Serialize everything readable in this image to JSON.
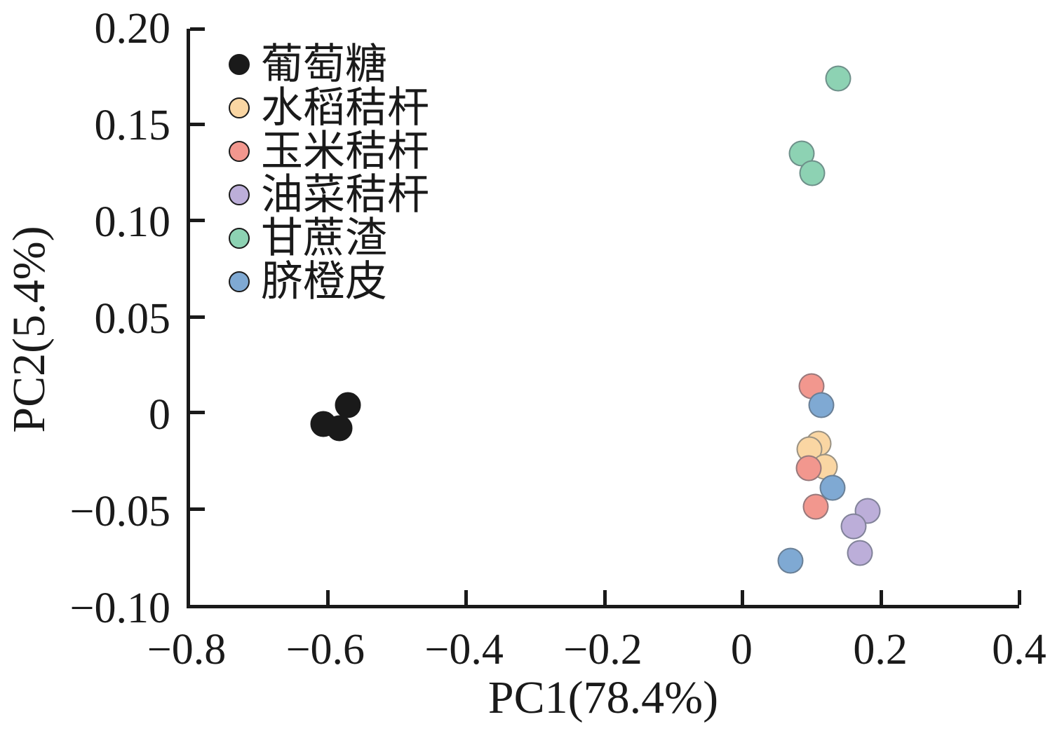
{
  "figure": {
    "background": "#ffffff",
    "text_color": "#1a1a1a"
  },
  "chart_data": {
    "type": "scatter",
    "title": "",
    "xlabel": "PC1(78.4%)",
    "ylabel": "PC2(5.4%)",
    "xlim": [
      -0.8,
      0.4
    ],
    "ylim": [
      -0.1,
      0.2
    ],
    "grid": false,
    "legend_position": "upper-left-inside",
    "x_tick_values": [
      -0.8,
      -0.6,
      -0.4,
      -0.2,
      0,
      0.2,
      0.4
    ],
    "x_tick_labels": [
      "−0.8",
      "−0.6",
      "−0.4",
      "−0.2",
      "0",
      "0.2",
      "0.4"
    ],
    "x_tick_marks": [
      -0.6,
      -0.4,
      -0.2,
      0,
      0.2,
      0.4
    ],
    "y_tick_values": [
      0.2,
      0.15,
      0.1,
      0.05,
      0,
      -0.05,
      -0.1
    ],
    "y_tick_labels": [
      "0.20",
      "0.15",
      "0.10",
      "0.05",
      "0",
      "−0.05",
      "−0.10"
    ],
    "y_tick_marks": [
      0.2,
      0.15,
      0.1,
      0.05,
      0,
      -0.05
    ],
    "marker_diameter_px": 37,
    "marker_edge_color": "rgba(90,100,110,0.6)",
    "series": [
      {
        "id": "glucose",
        "name": "葡萄糖",
        "color": "#1a1a1a",
        "edge": "#1a1a1a",
        "points": [
          [
            -0.572,
            0.004
          ],
          [
            -0.607,
            -0.006
          ],
          [
            -0.584,
            -0.008
          ]
        ]
      },
      {
        "id": "rice-straw",
        "name": "水稻秸杆",
        "color": "#FAD6A3",
        "edge": "rgba(90,100,110,0.6)",
        "points": [
          [
            0.11,
            -0.016
          ],
          [
            0.096,
            -0.019
          ],
          [
            0.119,
            -0.028
          ]
        ]
      },
      {
        "id": "corn-straw",
        "name": "玉米秸杆",
        "color": "#F2978E",
        "edge": "rgba(90,100,110,0.6)",
        "points": [
          [
            0.099,
            0.014
          ],
          [
            0.095,
            -0.029
          ],
          [
            0.106,
            -0.049
          ]
        ]
      },
      {
        "id": "rapeseed-straw",
        "name": "油菜秸杆",
        "color": "#BCAED9",
        "edge": "rgba(90,100,110,0.6)",
        "points": [
          [
            0.181,
            -0.051
          ],
          [
            0.16,
            -0.059
          ],
          [
            0.17,
            -0.073
          ]
        ]
      },
      {
        "id": "bagasse",
        "name": "甘蔗渣",
        "color": "#8DD2B3",
        "edge": "rgba(90,100,110,0.6)",
        "points": [
          [
            0.138,
            0.174
          ],
          [
            0.085,
            0.135
          ],
          [
            0.101,
            0.125
          ]
        ]
      },
      {
        "id": "orange-peel",
        "name": "脐橙皮",
        "color": "#7FA9D3",
        "edge": "rgba(90,100,110,0.6)",
        "points": [
          [
            0.114,
            0.004
          ],
          [
            0.13,
            -0.039
          ],
          [
            0.069,
            -0.077
          ]
        ]
      }
    ]
  }
}
